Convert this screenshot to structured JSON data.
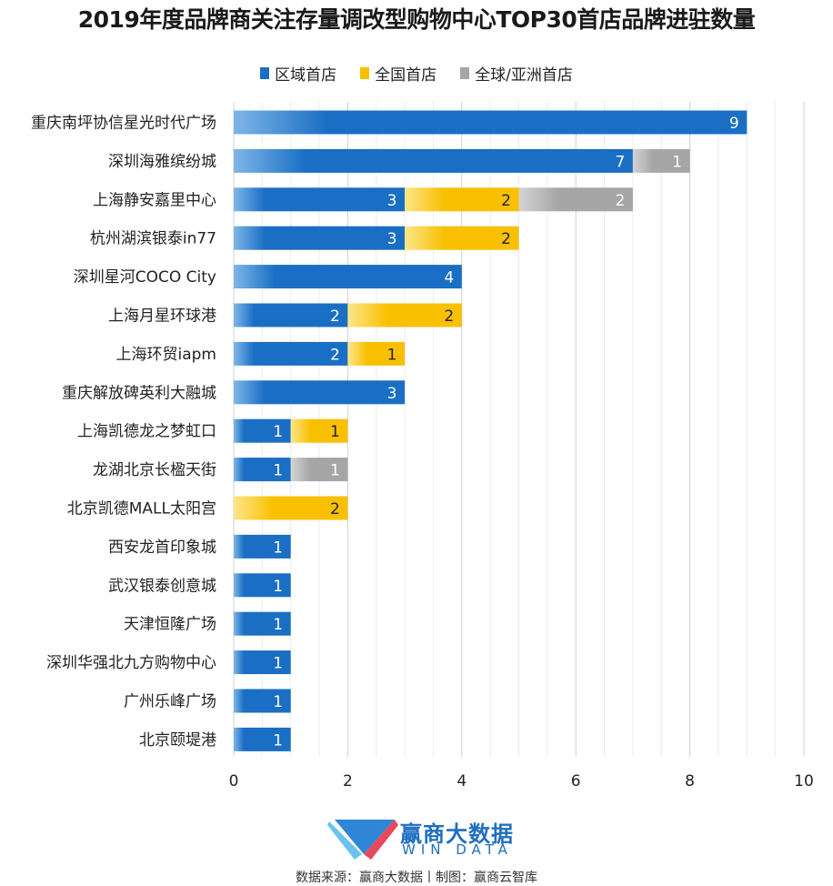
{
  "chart_data": {
    "type": "bar",
    "orientation": "horizontal",
    "stacked": true,
    "title": "2019年度品牌商关注存量调改型购物中心TOP30首店品牌进驻数量",
    "categories": [
      "重庆南坪协信星光时代广场",
      "深圳海雅缤纷城",
      "上海静安嘉里中心",
      "杭州湖滨银泰in77",
      "深圳星河COCO City",
      "上海月星环球港",
      "上海环贸iapm",
      "重庆解放碑英利大融城",
      "上海凯德龙之梦虹口",
      "龙湖北京长楹天街",
      "北京凯德MALL太阳宫",
      "西安龙首印象城",
      "武汉银泰创意城",
      "天津恒隆广场",
      "深圳华强北九方购物中心",
      "广州乐峰广场",
      "北京颐堤港"
    ],
    "series": [
      {
        "name": "区域首店",
        "color": "#1a6fc4",
        "values": [
          9,
          7,
          3,
          3,
          4,
          2,
          2,
          3,
          1,
          1,
          0,
          1,
          1,
          1,
          1,
          1,
          1
        ]
      },
      {
        "name": "全国首店",
        "color": "#f8c000",
        "values": [
          0,
          0,
          2,
          2,
          0,
          2,
          1,
          0,
          1,
          0,
          2,
          0,
          0,
          0,
          0,
          0,
          0
        ]
      },
      {
        "name": "全球/亚洲首店",
        "color": "#a6a6a6",
        "values": [
          0,
          1,
          2,
          0,
          0,
          0,
          0,
          0,
          0,
          1,
          0,
          0,
          0,
          0,
          0,
          0,
          0
        ]
      }
    ],
    "xlim": [
      0,
      10
    ],
    "xticks": [
      "0",
      "2",
      "4",
      "6",
      "8",
      "10"
    ],
    "grid": true,
    "legend_position": "top-center"
  },
  "logo": {
    "name_cn": "赢商大数据",
    "name_en": "WIN DATA"
  },
  "footer": {
    "source": "数据来源：赢商大数据丨制图：赢商云智库"
  }
}
